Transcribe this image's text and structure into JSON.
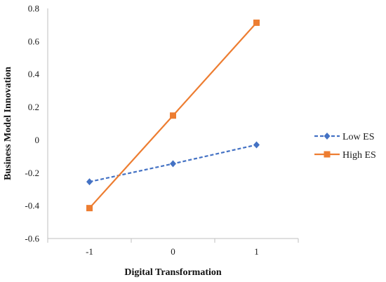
{
  "chart_data": {
    "type": "line",
    "xlabel": "Digital Transformation",
    "ylabel": "Business Model Innovation",
    "categories": [
      "-1",
      "0",
      "1"
    ],
    "ylim": [
      -0.6,
      0.8
    ],
    "yticks": [
      -0.6,
      -0.4,
      -0.2,
      0,
      0.2,
      0.4,
      0.6,
      0.8
    ],
    "ytick_labels": [
      "-0.6",
      "-0.4",
      "-0.2",
      "0",
      "0.2",
      "0.4",
      "0.6",
      "0.8"
    ],
    "grid": false,
    "legend_position": "right",
    "series": [
      {
        "name": "Low ES",
        "values": [
          -0.255,
          -0.145,
          -0.03
        ],
        "color": "#4472C4",
        "line_style": "dashed",
        "marker": "diamond"
      },
      {
        "name": "High ES",
        "values": [
          -0.415,
          0.148,
          0.713
        ],
        "color": "#ED7D31",
        "line_style": "solid",
        "marker": "square"
      }
    ]
  }
}
